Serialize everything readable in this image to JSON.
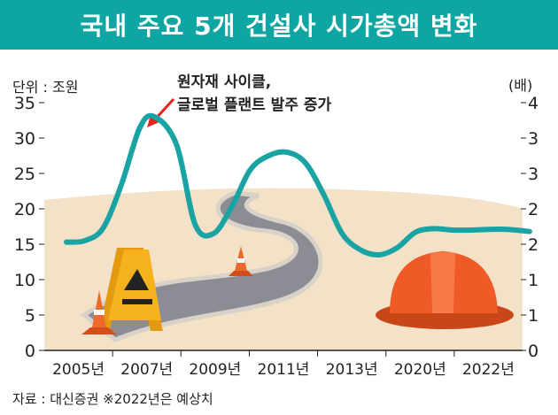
{
  "title": "국내 주요 5개 건설사 시가총액 변화",
  "source_note": "자료 : 대신증권 ※2022년은 예상치",
  "colors": {
    "header_bg": "#0ea5a2",
    "line": "#1aa3a3",
    "arrow": "#e8231f",
    "ground": "#f3e1c8",
    "road": "#8c8c94",
    "road_edge": "#d8d2c8",
    "helmet": "#ef5a26",
    "sign": "#f5b21c",
    "cone": "#ef6a2a"
  },
  "chart_data": {
    "type": "line",
    "title": "국내 주요 5개 건설사 시가총액 변화",
    "left_unit_label": "단위 : 조원",
    "right_unit_label": "(배)",
    "annotation": [
      "원자재 사이클,",
      "글로벌 플랜트 발주 증가"
    ],
    "x_ticks": [
      "2005년",
      "2007년",
      "2009년",
      "2011년",
      "2013년",
      "2020년",
      "2022년"
    ],
    "y_left_ticks": [
      0,
      5,
      10,
      15,
      20,
      25,
      30,
      35
    ],
    "y_right_ticks": [
      "0",
      "1",
      "1",
      "2",
      "2",
      "3",
      "3",
      "4"
    ],
    "ylim": [
      0,
      35
    ],
    "series": [
      {
        "x": [
          0,
          0.25,
          0.5,
          0.75,
          1,
          1.2,
          1.5,
          1.75,
          2,
          2.25,
          2.5,
          2.75,
          3,
          3.25,
          3.5,
          3.75,
          4,
          4.25,
          4.5,
          4.75,
          5,
          5.25,
          5.5,
          5.75,
          6,
          6.3
        ],
        "values": [
          15.3,
          15.5,
          17.3,
          23.5,
          31.5,
          33.0,
          29.0,
          17.8,
          16.5,
          20.3,
          25.5,
          27.5,
          28.0,
          26.5,
          22.0,
          16.5,
          14.2,
          13.5,
          14.5,
          16.7,
          17.2,
          17.0,
          17.0,
          17.1,
          17.1,
          16.8
        ]
      }
    ]
  }
}
